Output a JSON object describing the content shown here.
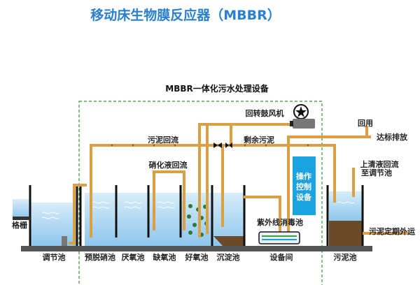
{
  "title": "移动床生物膜反应器（MBBR）",
  "subtitle": "MBBR一体化污水处理设备",
  "labels": {
    "blower": "回转鼓风机",
    "sludge_return": "污泥回流",
    "excess_sludge": "剩余污泥",
    "nitrate_return": "硝化液回流",
    "reuse": "回用",
    "discharge": "达标排放",
    "supernatant_1": "上清液回流",
    "supernatant_2": "至调节池",
    "control_1": "操作",
    "control_2": "控制",
    "control_3": "设备",
    "uv": "紫外线消毒池",
    "grille": "格栅",
    "sludge_out": "污泥定期外运"
  },
  "tanks": [
    "调节池",
    "预脱硝池",
    "厌氧池",
    "缺氧池",
    "好氧池",
    "沉淀池",
    "设备间",
    "污泥池"
  ],
  "colors": {
    "title": "#2b7fd0",
    "pipe": "#d9a045",
    "water": "#bfe0f5",
    "sludge": "#6b4a2a",
    "control": "#1aa3e0",
    "boundary": "#3a8a3a"
  }
}
